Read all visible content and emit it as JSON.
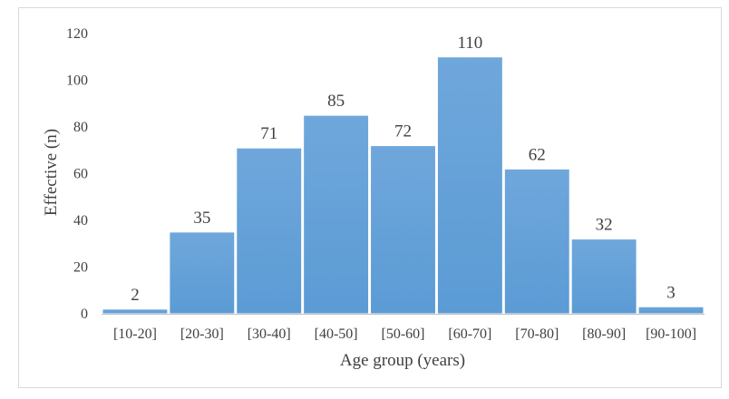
{
  "chart_data": {
    "type": "bar",
    "title": "",
    "xlabel": "Age group (years)",
    "ylabel": "Effective (n)",
    "categories": [
      "[10-20]",
      "[20-30]",
      "[30-40]",
      "[40-50]",
      "[50-60]",
      "[60-70]",
      "[70-80]",
      "[80-90]",
      "[90-100]"
    ],
    "values": [
      2,
      35,
      71,
      85,
      72,
      110,
      62,
      32,
      3
    ],
    "ylim": [
      0,
      120
    ],
    "yticks": [
      0,
      20,
      40,
      60,
      80,
      100,
      120
    ],
    "grid": false,
    "legend": "none",
    "bar_color": "#5b9bd5",
    "bar_color_top": "#6fa7db",
    "data_labels": true
  }
}
